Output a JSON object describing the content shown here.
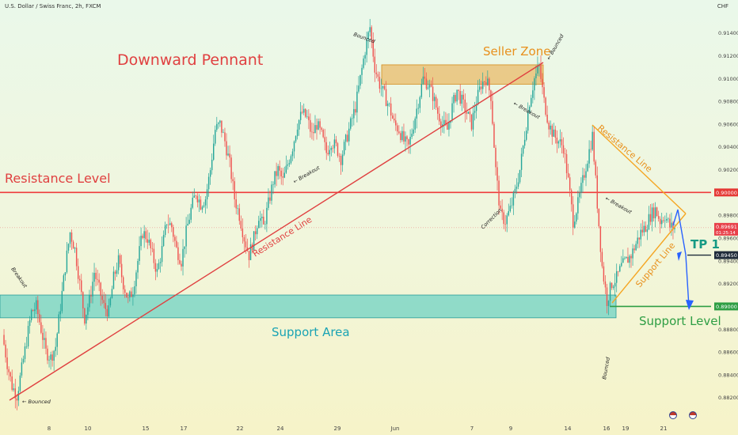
{
  "header": {
    "symbol_line": "U.S. Dollar / Swiss Franc, 2h, FXCM",
    "currency": "CHF"
  },
  "chart_data": {
    "type": "candlestick",
    "title": "Downward Pennant",
    "symbol": "U.S. Dollar / Swiss Franc",
    "timeframe": "2h",
    "source": "FXCM",
    "ylim": [
      0.8808,
      0.9155
    ],
    "y_ticks": [
      "0.91400",
      "0.91200",
      "0.91000",
      "0.90800",
      "0.90600",
      "0.90400",
      "0.90200",
      "0.90000",
      "0.89800",
      "0.89600",
      "0.89400",
      "0.89200",
      "0.89000",
      "0.88800",
      "0.88600",
      "0.88400",
      "0.88200"
    ],
    "x_ticks": [
      "8",
      "10",
      "15",
      "17",
      "22",
      "24",
      "29",
      "Jun",
      "7",
      "9",
      "14",
      "16",
      "19",
      "21"
    ],
    "price_path": [
      0.8875,
      0.885,
      0.883,
      0.8822,
      0.8845,
      0.887,
      0.8895,
      0.89,
      0.888,
      0.886,
      0.8855,
      0.8865,
      0.89,
      0.8935,
      0.8965,
      0.895,
      0.892,
      0.889,
      0.8905,
      0.893,
      0.8915,
      0.89,
      0.8895,
      0.8925,
      0.894,
      0.892,
      0.8905,
      0.8915,
      0.894,
      0.8965,
      0.896,
      0.8945,
      0.893,
      0.895,
      0.8975,
      0.897,
      0.895,
      0.894,
      0.8965,
      0.8985,
      0.9,
      0.899,
      0.8995,
      0.902,
      0.9055,
      0.906,
      0.9045,
      0.9025,
      0.8995,
      0.898,
      0.896,
      0.8945,
      0.896,
      0.898,
      0.897,
      0.899,
      0.901,
      0.902,
      0.901,
      0.9025,
      0.904,
      0.906,
      0.907,
      0.9065,
      0.905,
      0.906,
      0.905,
      0.9035,
      0.9045,
      0.904,
      0.903,
      0.9045,
      0.906,
      0.9075,
      0.91,
      0.9125,
      0.9145,
      0.911,
      0.9095,
      0.9085,
      0.9075,
      0.906,
      0.9055,
      0.9045,
      0.904,
      0.906,
      0.908,
      0.91,
      0.9095,
      0.9085,
      0.907,
      0.906,
      0.9055,
      0.9075,
      0.909,
      0.908,
      0.907,
      0.906,
      0.908,
      0.9095,
      0.91,
      0.9085,
      0.902,
      0.898,
      0.8975,
      0.8985,
      0.9,
      0.902,
      0.905,
      0.908,
      0.91,
      0.911,
      0.908,
      0.906,
      0.905,
      0.9045,
      0.904,
      0.901,
      0.8975,
      0.899,
      0.901,
      0.903,
      0.905,
      0.899,
      0.8935,
      0.8905,
      0.892,
      0.8925,
      0.8935,
      0.894,
      0.8945,
      0.8955,
      0.8965,
      0.897,
      0.898,
      0.8985,
      0.8975,
      0.898,
      0.897,
      0.8969
    ],
    "levels": [
      {
        "name": "Resistance Level",
        "value": 0.9,
        "label": "0.90000",
        "color": "#ef3b3b"
      },
      {
        "name": "Support Level",
        "value": 0.89,
        "label": "0.89000",
        "color": "#2e9e44"
      },
      {
        "name": "TP 1",
        "value": 0.8945,
        "label": "0.89450",
        "color": "#1f2b3a"
      }
    ],
    "current_price": {
      "value": 0.89691,
      "label": "0.89691",
      "countdown": "01:25:14",
      "color": "#e8404a"
    },
    "zones": [
      {
        "name": "Support Area",
        "from": 0.889,
        "to": 0.891,
        "color": "#4fc9c0"
      },
      {
        "name": "Seller Zone",
        "from": 0.9095,
        "to": 0.9112,
        "color": "#e9a53d"
      }
    ],
    "annotations": {
      "title": "Downward Pennant",
      "resistance_level": "Resistance Level",
      "seller_zone": "Seller Zone",
      "support_area": "Support Area",
      "support_level": "Support Level",
      "tp1": "TP 1",
      "resistance_line_diag": "Resistance Line",
      "resistance_line_pennant": "Resistance Line",
      "support_line": "Support Line",
      "notes": [
        "Bounced",
        "Bounced",
        "Bounced",
        "Bounced",
        "Breakout",
        "Breakout",
        "Breakout",
        "Breakout",
        "Correction"
      ]
    },
    "grid": false,
    "colors": {
      "up": "#26a69a",
      "down": "#ef5350",
      "pennant": "#f5a623",
      "projection": "#2962ff"
    }
  }
}
